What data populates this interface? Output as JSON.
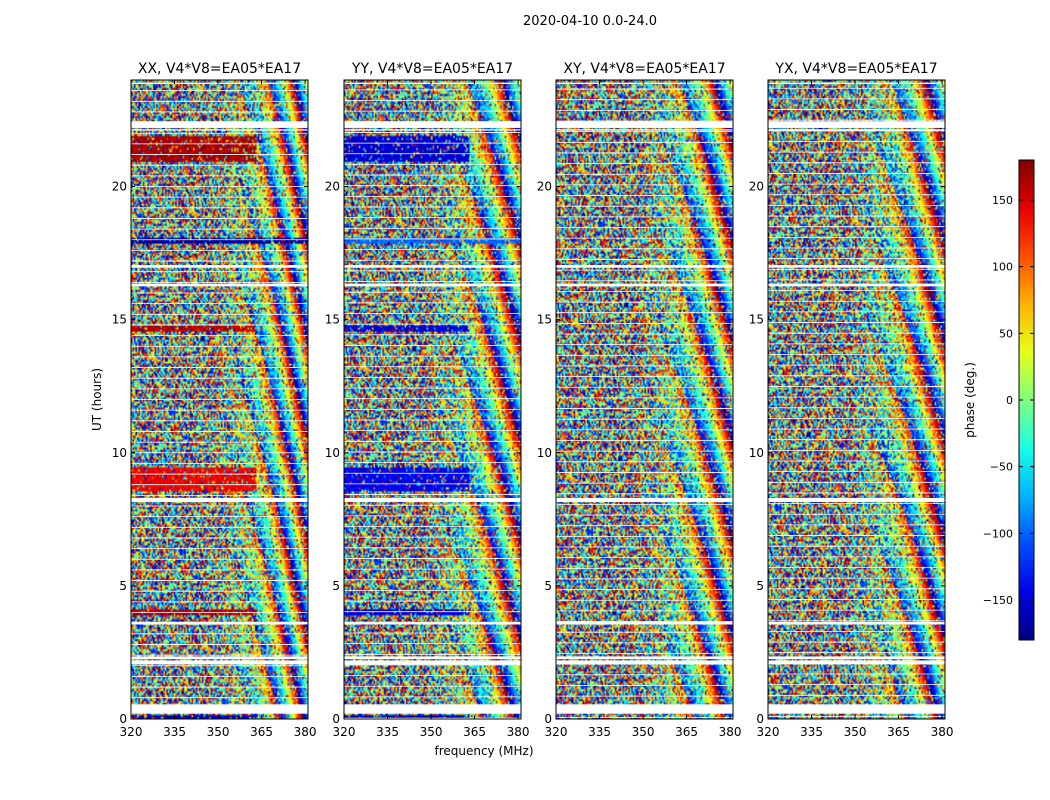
{
  "figure": {
    "suptitle": "2020-04-10 0.0-24.0"
  },
  "chart_data": [
    {
      "type": "heatmap",
      "title": "XX, V4*V8=EA05*EA17",
      "xlabel": "",
      "ylabel": "UT (hours)",
      "xlim": [
        320,
        381
      ],
      "ylim": [
        0,
        24
      ],
      "x_ticks": [
        "320",
        "335",
        "350",
        "365",
        "380"
      ],
      "y_ticks": [
        "0",
        "5",
        "10",
        "15",
        "20"
      ],
      "z_quantity": "phase (deg.)",
      "z_range": [
        -180,
        180
      ],
      "coherent_bands": [
        {
          "ut": [
            0.05,
            0.2
          ],
          "freq": [
            320,
            363
          ],
          "phase": -160
        },
        {
          "ut": [
            3.9,
            4.2
          ],
          "freq": [
            320,
            363
          ],
          "phase": 160
        },
        {
          "ut": [
            8.6,
            9.5
          ],
          "freq": [
            320,
            363
          ],
          "phase": 140
        },
        {
          "ut": [
            14.6,
            14.8
          ],
          "freq": [
            320,
            363
          ],
          "phase": 160
        },
        {
          "ut": [
            17.9,
            18.1
          ],
          "freq": [
            320,
            381
          ],
          "phase": -170
        },
        {
          "ut": [
            21.0,
            21.9
          ],
          "freq": [
            320,
            363
          ],
          "phase": 165
        }
      ]
    },
    {
      "type": "heatmap",
      "title": "YY, V4*V8=EA05*EA17",
      "xlabel": "frequency (MHz)",
      "ylabel": "",
      "xlim": [
        320,
        381
      ],
      "ylim": [
        0,
        24
      ],
      "x_ticks": [
        "320",
        "335",
        "350",
        "365",
        "380"
      ],
      "y_ticks": [
        "0",
        "5",
        "10",
        "15",
        "20"
      ],
      "z_quantity": "phase (deg.)",
      "z_range": [
        -180,
        180
      ],
      "coherent_bands": [
        {
          "ut": [
            0.05,
            0.2
          ],
          "freq": [
            320,
            363
          ],
          "phase": -160
        },
        {
          "ut": [
            3.9,
            4.2
          ],
          "freq": [
            320,
            363
          ],
          "phase": -150
        },
        {
          "ut": [
            8.6,
            9.5
          ],
          "freq": [
            320,
            363
          ],
          "phase": -140
        },
        {
          "ut": [
            14.6,
            14.8
          ],
          "freq": [
            320,
            363
          ],
          "phase": -150
        },
        {
          "ut": [
            17.9,
            18.1
          ],
          "freq": [
            320,
            381
          ],
          "phase": -100
        },
        {
          "ut": [
            21.0,
            21.9
          ],
          "freq": [
            320,
            363
          ],
          "phase": -150
        }
      ]
    },
    {
      "type": "heatmap",
      "title": "XY, V4*V8=EA05*EA17",
      "xlabel": "",
      "ylabel": "",
      "xlim": [
        320,
        381
      ],
      "ylim": [
        0,
        24
      ],
      "x_ticks": [
        "320",
        "335",
        "350",
        "365",
        "380"
      ],
      "y_ticks": [
        "0",
        "5",
        "10",
        "15",
        "20"
      ],
      "z_quantity": "phase (deg.)",
      "z_range": [
        -180,
        180
      ],
      "coherent_bands": []
    },
    {
      "type": "heatmap",
      "title": "YX, V4*V8=EA05*EA17",
      "xlabel": "",
      "ylabel": "",
      "xlim": [
        320,
        381
      ],
      "ylim": [
        0,
        24
      ],
      "x_ticks": [
        "320",
        "335",
        "350",
        "365",
        "380"
      ],
      "y_ticks": [
        "0",
        "5",
        "10",
        "15",
        "20"
      ],
      "z_quantity": "phase (deg.)",
      "z_range": [
        -180,
        180
      ],
      "coherent_bands": []
    }
  ],
  "flagged_ut_gaps": [
    [
      0.2,
      0.55
    ],
    [
      2.05,
      2.2
    ],
    [
      2.25,
      2.35
    ],
    [
      3.55,
      3.65
    ],
    [
      8.15,
      8.3
    ],
    [
      16.25,
      16.35
    ],
    [
      16.95,
      17.05
    ],
    [
      22.1,
      22.15
    ],
    [
      22.2,
      22.45
    ],
    [
      23.85,
      23.9
    ]
  ],
  "colorbar": {
    "label": "phase (deg.)",
    "range": [
      -180,
      180
    ],
    "ticks": [
      "150",
      "100",
      "50",
      "0",
      "−50",
      "−100",
      "−150"
    ],
    "tick_values": [
      150,
      100,
      50,
      0,
      -50,
      -100,
      -150
    ],
    "colormap": "jet"
  }
}
